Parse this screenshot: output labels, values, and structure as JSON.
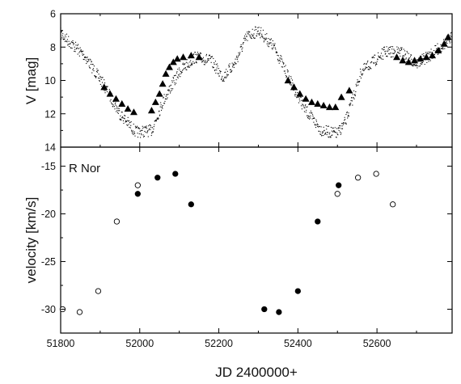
{
  "chart_data": [
    {
      "type": "scatter",
      "panel": "top",
      "ylabel": "V [mag]",
      "xlim": [
        51800,
        52790
      ],
      "ylim": [
        14,
        6
      ],
      "y_inverted": true,
      "yticks": [
        6,
        8,
        10,
        12,
        14
      ],
      "series": [
        {
          "marker": "dot",
          "color": "#000000",
          "light_curve_anchors": {
            "x": [
              51800,
              51860,
              51910,
              51950,
              51990,
              52030,
              52060,
              52100,
              52140,
              52180,
              52210,
              52240,
              52270,
              52300,
              52340,
              52380,
              52420,
              52460,
              52500,
              52520,
              52560,
              52620,
              52660,
              52700,
              52740,
              52790
            ],
            "y": [
              7.2,
              8.5,
              10.3,
              12.0,
              13.1,
              13.0,
              11.2,
              9.5,
              8.6,
              8.8,
              9.8,
              9.0,
              7.4,
              7.0,
              8.0,
              10.0,
              11.8,
              13.0,
              13.2,
              12.5,
              9.5,
              8.3,
              8.3,
              9.0,
              8.4,
              7.4
            ]
          }
        },
        {
          "marker": "filled-triangle",
          "color": "#000000",
          "x": [
            51910,
            51925,
            51940,
            51955,
            51970,
            51985,
            52030,
            52040,
            52050,
            52058,
            52066,
            52075,
            52085,
            52095,
            52110,
            52130,
            52150,
            52375,
            52390,
            52405,
            52420,
            52435,
            52450,
            52465,
            52480,
            52495,
            52510,
            52530,
            52650,
            52665,
            52680,
            52695,
            52710,
            52725,
            52740,
            52755,
            52770,
            52780
          ],
          "y": [
            10.4,
            10.8,
            11.1,
            11.4,
            11.7,
            11.9,
            11.8,
            11.3,
            10.8,
            10.2,
            9.6,
            9.2,
            8.9,
            8.7,
            8.6,
            8.5,
            8.6,
            10.0,
            10.4,
            10.8,
            11.1,
            11.3,
            11.4,
            11.5,
            11.6,
            11.6,
            11.0,
            10.6,
            8.6,
            8.8,
            8.9,
            8.8,
            8.7,
            8.6,
            8.5,
            8.2,
            7.8,
            7.4
          ]
        }
      ]
    },
    {
      "type": "scatter",
      "panel": "bottom",
      "title": "R Nor",
      "xlabel": "JD 2400000+",
      "ylabel": "velocity [km/s]",
      "xlim": [
        51800,
        52790
      ],
      "ylim": [
        -32.5,
        -13
      ],
      "xticks": [
        51800,
        52000,
        52200,
        52400,
        52600
      ],
      "yticks": [
        -15,
        -20,
        -25,
        -30
      ],
      "series": [
        {
          "marker": "open-circle",
          "x": [
            51805,
            51848,
            51895,
            51942,
            51995,
            52500,
            52552,
            52598,
            52640
          ],
          "y": [
            -30.0,
            -30.3,
            -28.1,
            -20.8,
            -17.0,
            -17.9,
            -16.2,
            -15.8,
            -19.0
          ]
        },
        {
          "marker": "filled-circle",
          "x": [
            51995,
            52045,
            52090,
            52130,
            52315,
            52352,
            52400,
            52450,
            52503
          ],
          "y": [
            -17.9,
            -16.2,
            -15.8,
            -19.0,
            -30.0,
            -30.3,
            -28.1,
            -20.8,
            -17.0
          ]
        }
      ]
    }
  ],
  "labels": {
    "top_ylabel": "V [mag]",
    "bottom_ylabel": "velocity [km/s]",
    "xlabel": "JD 2400000+",
    "object_name": "R Nor",
    "top_ytick_labels": [
      "6",
      "8",
      "10",
      "12",
      "14"
    ],
    "bottom_ytick_labels": [
      "-15",
      "-20",
      "-25",
      "-30"
    ],
    "xtick_labels": [
      "51800",
      "52000",
      "52200",
      "52400",
      "52600"
    ]
  }
}
